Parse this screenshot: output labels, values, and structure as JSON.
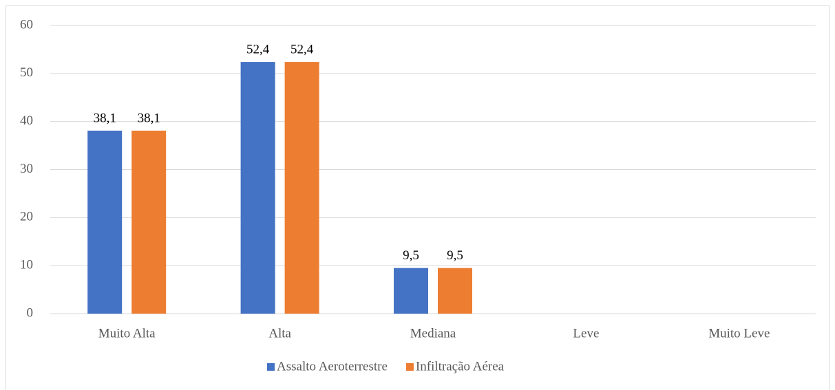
{
  "chart_data": {
    "type": "bar",
    "categories": [
      "Muito Alta",
      "Alta",
      "Mediana",
      "Leve",
      "Muito Leve"
    ],
    "series": [
      {
        "name": "Assalto Aeroterrestre",
        "color": "#4472c4",
        "values": [
          38.1,
          52.4,
          9.5,
          null,
          null
        ],
        "value_labels": [
          "38,1",
          "52,4",
          "9,5",
          null,
          null
        ]
      },
      {
        "name": "Infiltração Aérea",
        "color": "#ed7d31",
        "values": [
          38.1,
          52.4,
          9.5,
          null,
          null
        ],
        "value_labels": [
          "38,1",
          "52,4",
          "9,5",
          null,
          null
        ]
      }
    ],
    "ylim": [
      0,
      60
    ],
    "yticks": [
      0,
      10,
      20,
      30,
      40,
      50,
      60
    ],
    "grid": true,
    "legend": "bottom"
  }
}
